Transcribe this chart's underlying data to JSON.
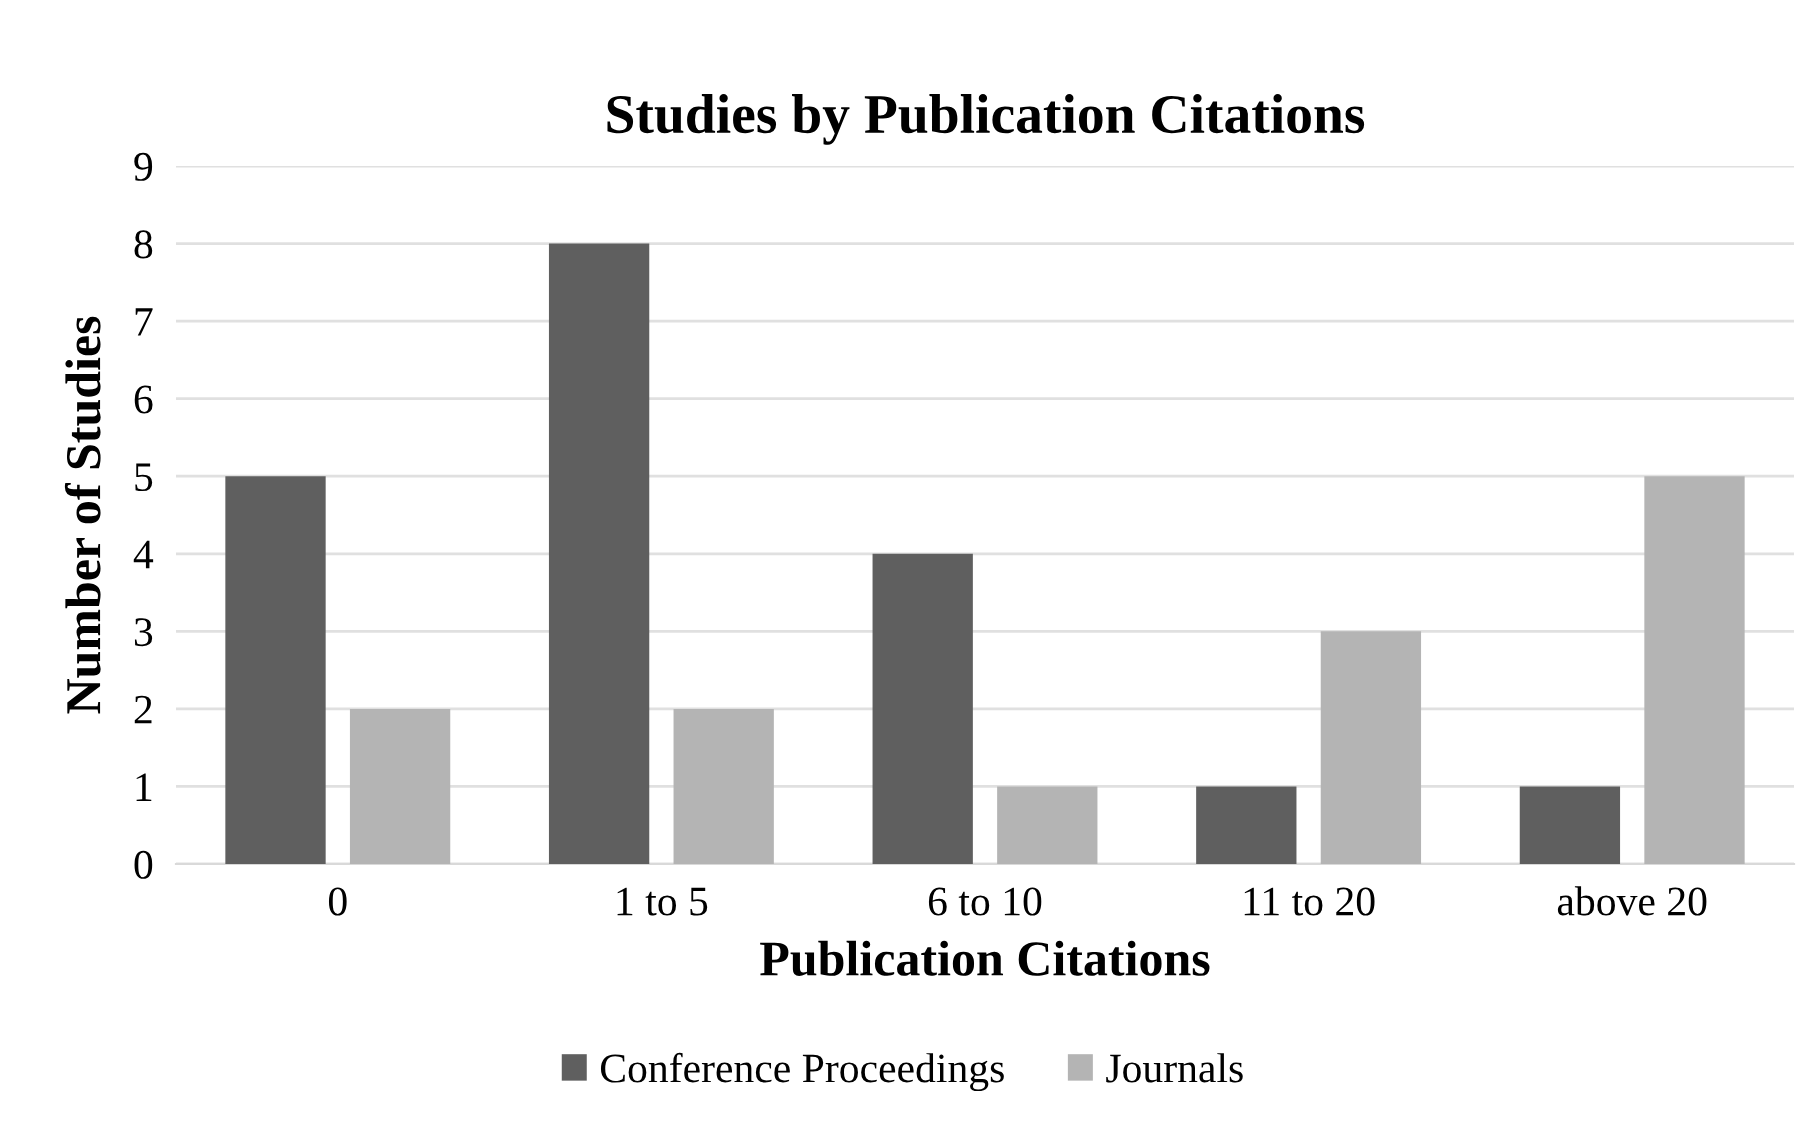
{
  "chart_data": {
    "type": "bar",
    "title": "Studies by Publication Citations",
    "xlabel": "Publication Citations",
    "ylabel": "Number of Studies",
    "categories": [
      "0",
      "1 to 5",
      "6 to 10",
      "11 to 20",
      "above 20"
    ],
    "series": [
      {
        "name": "Conference Proceedings",
        "color": "#5f5f5f",
        "values": [
          5,
          8,
          4,
          1,
          1
        ]
      },
      {
        "name": "Journals",
        "color": "#b4b4b4",
        "values": [
          2,
          2,
          1,
          3,
          5
        ]
      }
    ],
    "ylim": [
      0,
      9
    ],
    "yticks": [
      0,
      1,
      2,
      3,
      4,
      5,
      6,
      7,
      8,
      9
    ],
    "grid": "y",
    "legend": "bottom"
  }
}
